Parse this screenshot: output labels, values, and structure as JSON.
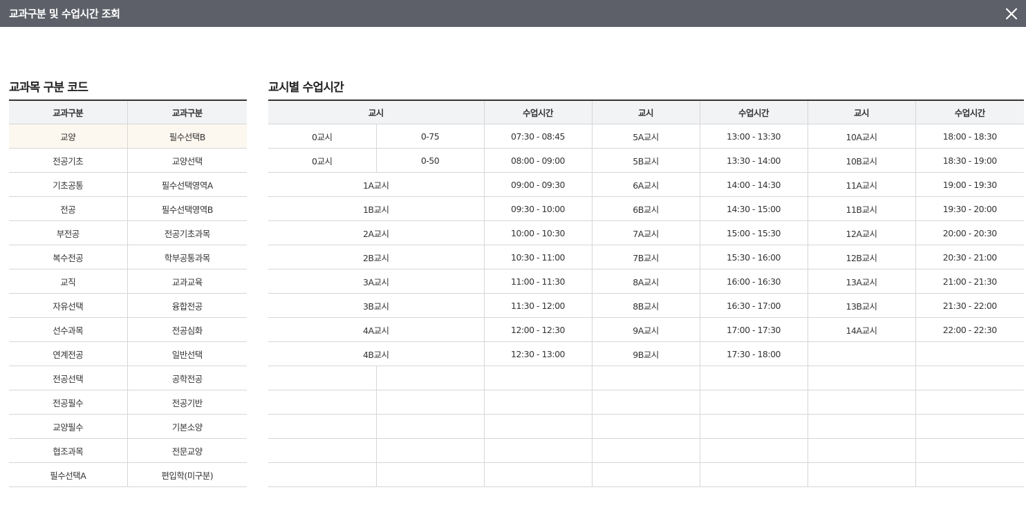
{
  "window": {
    "title": "교과구분 및 수업시간 조회"
  },
  "codes": {
    "heading": "교과목 구분 코드",
    "headers": [
      "교과구분",
      "교과구분"
    ],
    "rows": [
      [
        "교양",
        "필수선택B"
      ],
      [
        "전공기초",
        "교양선택"
      ],
      [
        "기초공통",
        "필수선택영역A"
      ],
      [
        "전공",
        "필수선택영역B"
      ],
      [
        "부전공",
        "전공기초과목"
      ],
      [
        "복수전공",
        "학부공통과목"
      ],
      [
        "교직",
        "교과교육"
      ],
      [
        "자유선택",
        "융합전공"
      ],
      [
        "선수과목",
        "전공심화"
      ],
      [
        "연계전공",
        "일반선택"
      ],
      [
        "전공선택",
        "공학전공"
      ],
      [
        "전공필수",
        "전공기반"
      ],
      [
        "교양필수",
        "기본소양"
      ],
      [
        "협조과목",
        "전문교양"
      ],
      [
        "필수선택A",
        "편입학(미구분)"
      ]
    ]
  },
  "times": {
    "heading": "교시별 수업시간",
    "headers": [
      "교시",
      "수업시간",
      "교시",
      "수업시간",
      "교시",
      "수업시간"
    ],
    "rows": [
      [
        "0교시",
        "0-75",
        "07:30 - 08:45",
        "5A교시",
        "13:00 - 13:30",
        "10A교시",
        "18:00 - 18:30"
      ],
      [
        "0교시",
        "0-50",
        "08:00 - 09:00",
        "5B교시",
        "13:30 - 14:00",
        "10B교시",
        "18:30 - 19:00"
      ],
      [
        "1A교시",
        "09:00 - 09:30",
        "6A교시",
        "14:00 - 14:30",
        "11A교시",
        "19:00 - 19:30"
      ],
      [
        "1B교시",
        "09:30 - 10:00",
        "6B교시",
        "14:30 - 15:00",
        "11B교시",
        "19:30 - 20:00"
      ],
      [
        "2A교시",
        "10:00 - 10:30",
        "7A교시",
        "15:00 - 15:30",
        "12A교시",
        "20:00 - 20:30"
      ],
      [
        "2B교시",
        "10:30 - 11:00",
        "7B교시",
        "15:30 - 16:00",
        "12B교시",
        "20:30 - 21:00"
      ],
      [
        "3A교시",
        "11:00 - 11:30",
        "8A교시",
        "16:00 - 16:30",
        "13A교시",
        "21:00 - 21:30"
      ],
      [
        "3B교시",
        "11:30 - 12:00",
        "8B교시",
        "16:30 - 17:00",
        "13B교시",
        "21:30 - 22:00"
      ],
      [
        "4A교시",
        "12:00 - 12:30",
        "9A교시",
        "17:00 - 17:30",
        "14A교시",
        "22:00 - 22:30"
      ],
      [
        "4B교시",
        "12:30 - 13:00",
        "9B교시",
        "17:30 - 18:00",
        "",
        ""
      ]
    ],
    "empty_rows": 5
  }
}
